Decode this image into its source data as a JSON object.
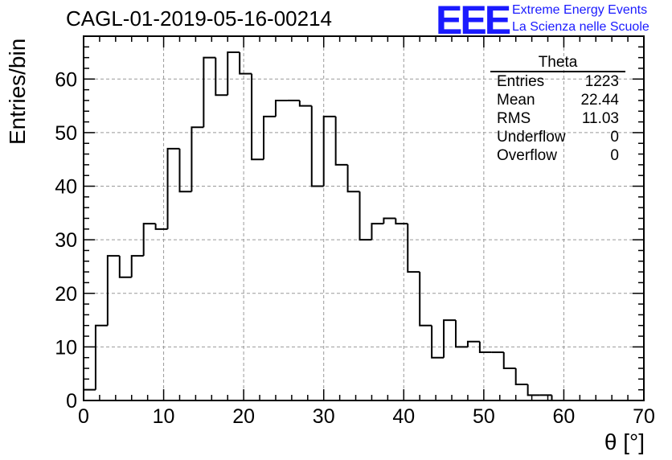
{
  "header": {
    "title": "CAGL-01-2019-05-16-00214",
    "logo_text": "EEE",
    "logo_line1": "Extreme Energy Events",
    "logo_line2": "La Scienza nelle Scuole"
  },
  "stats_box": {
    "name": "Theta",
    "rows": [
      {
        "label": "Entries",
        "value": "1223"
      },
      {
        "label": "Mean",
        "value": "22.44"
      },
      {
        "label": "RMS",
        "value": "11.03"
      },
      {
        "label": "Underflow",
        "value": "0"
      },
      {
        "label": "Overflow",
        "value": "0"
      }
    ]
  },
  "colors": {
    "logo": "#1a1aff",
    "line": "#000000",
    "grid": "#999999"
  },
  "chart_data": {
    "type": "histogram",
    "title": "CAGL-01-2019-05-16-00214",
    "xlabel": "θ [°]",
    "ylabel": "Entries/bin",
    "xlim": [
      0,
      70
    ],
    "ylim": [
      0,
      68
    ],
    "bin_width": 1.5,
    "x_ticks": [
      0,
      10,
      20,
      30,
      40,
      50,
      60,
      70
    ],
    "y_ticks": [
      0,
      10,
      20,
      30,
      40,
      50,
      60
    ],
    "grid": true,
    "values": [
      2,
      14,
      27,
      23,
      27,
      33,
      32,
      47,
      39,
      51,
      64,
      57,
      65,
      61,
      45,
      53,
      56,
      56,
      55,
      40,
      53,
      44,
      39,
      30,
      33,
      34,
      33,
      24,
      14,
      8,
      15,
      10,
      11,
      9,
      9,
      6,
      3,
      1,
      1,
      0,
      0,
      0,
      0,
      0,
      0,
      0
    ]
  }
}
